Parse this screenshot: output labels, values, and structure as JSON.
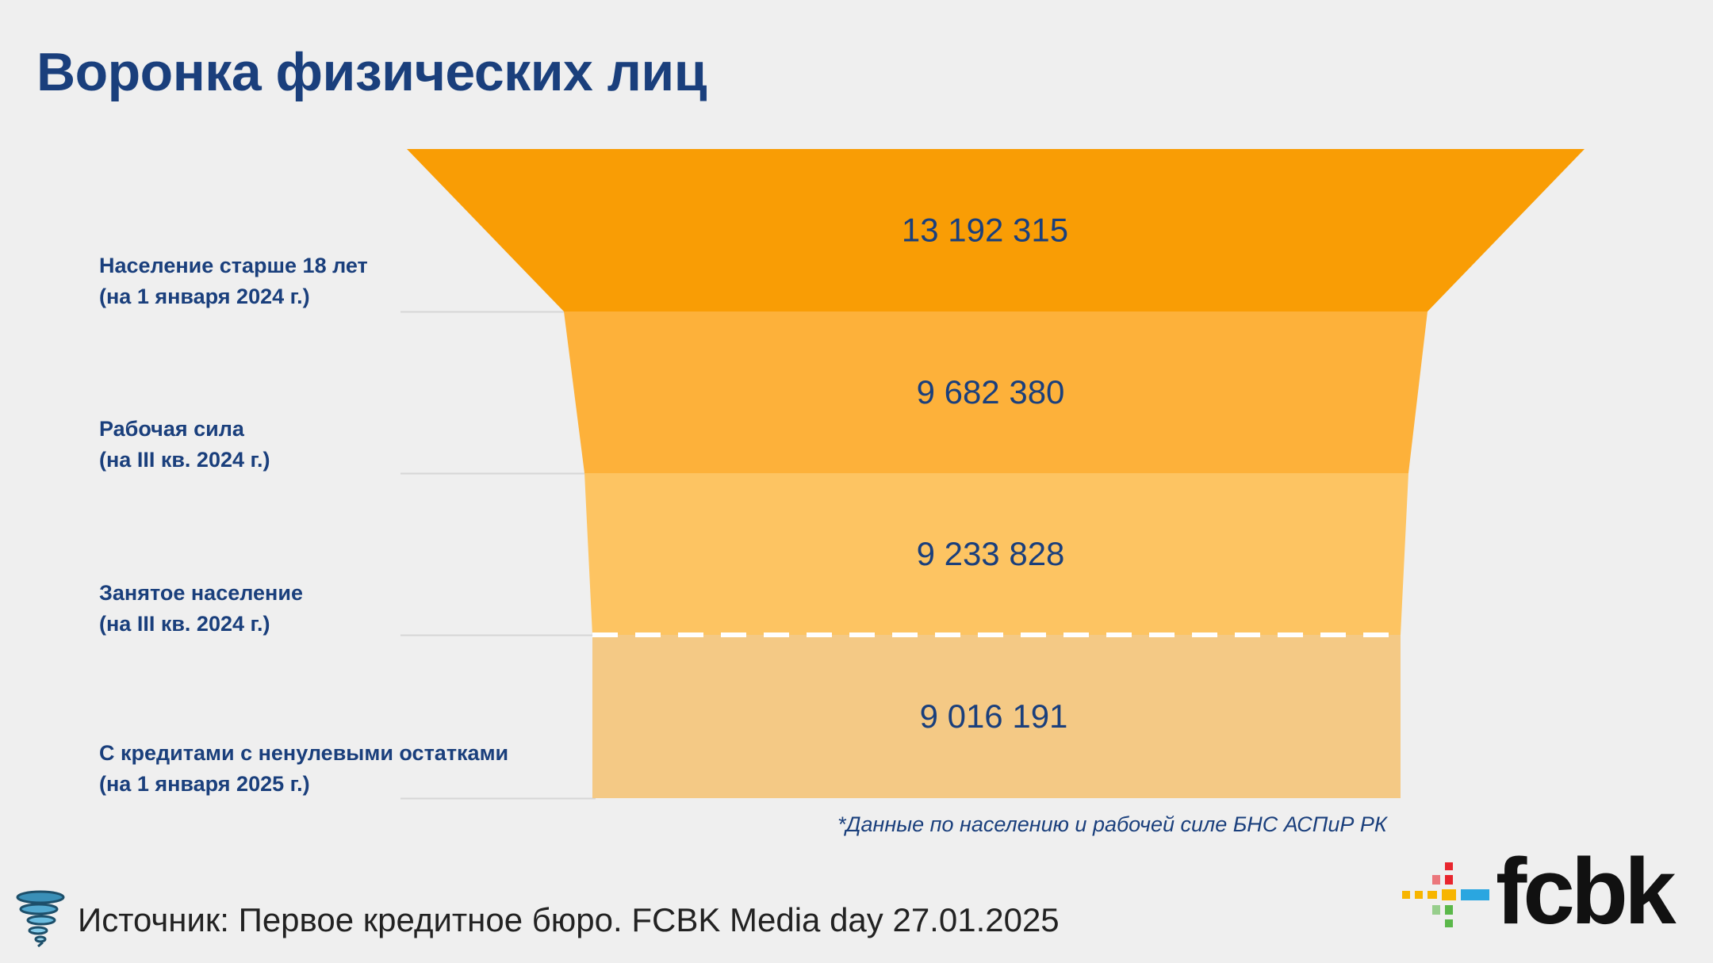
{
  "page": {
    "title": "Воронка физических лиц",
    "footnote": "*Данные по населению и рабочей силе БНС АСПиР РК",
    "source": "Источник: Первое кредитное бюро. FCBK Media day 27.01.2025",
    "logo_text": "fcbk",
    "icons": [
      "tornado-icon",
      "fcbk-logo-icon"
    ]
  },
  "colors": {
    "title": "#1a3f7c",
    "stage_fills": [
      "#f99d05",
      "#fdb13a",
      "#fdc462",
      "#f4c985"
    ],
    "value_text": "#1a3f7c",
    "dashed_divider": "#ffffff"
  },
  "chart_data": {
    "type": "funnel",
    "title": "Воронка физических лиц",
    "categories": [
      "Население старше 18 лет (на 1 января 2024 г.)",
      "Рабочая сила (на III кв. 2024 г.)",
      "Занятое население (на III кв. 2024 г.)",
      "С кредитами с ненулевыми остатками (на 1 января 2025 г.)"
    ],
    "values": [
      13192315,
      9682380,
      9233828,
      9016191
    ],
    "value_labels": [
      "13 192 315",
      "9 682 380",
      "9 233 828",
      "9 016 191"
    ],
    "stages": [
      {
        "line1": "Население старше 18 лет",
        "line2": "(на 1 января 2024 г.)"
      },
      {
        "line1": "Рабочая сила",
        "line2": "(на III кв. 2024 г.)"
      },
      {
        "line1": "Занятое население",
        "line2": "(на III кв. 2024 г.)"
      },
      {
        "line1": "С кредитами с ненулевыми остатками",
        "line2": "(на 1 января 2025 г.)"
      }
    ],
    "dashed_divider_after_stage": 3,
    "legend": "none",
    "grid": false
  }
}
